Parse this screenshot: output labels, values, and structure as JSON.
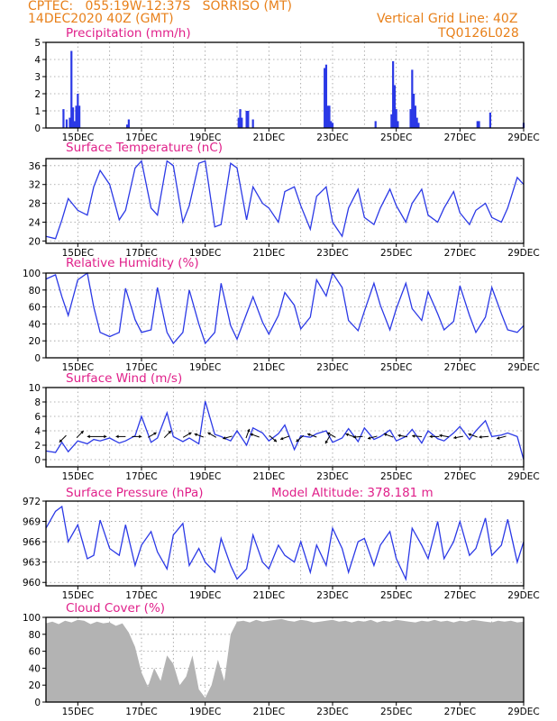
{
  "header": {
    "line1_left": "CPTEC:   055:19W-12:37S   SORRISO (MT)",
    "line2_left": "14DEC2020 40Z (GMT)",
    "line1_right": "Vertical Grid Line: 40Z",
    "line2_right": "TQ0126L028"
  },
  "colors": {
    "series": "#2b39e6",
    "cloud": "#b3b3b3",
    "title": "#e0208a",
    "header": "#e8801a"
  },
  "chart_data": [
    {
      "type": "bar",
      "title": "Precipitation (mm/h)",
      "x_ticks": [
        "15DEC",
        "17DEC",
        "19DEC",
        "21DEC",
        "23DEC",
        "25DEC",
        "27DEC",
        "29DEC"
      ],
      "xlim_days": [
        14,
        29
      ],
      "ylim": [
        0,
        5
      ],
      "y_ticks": [
        0,
        1,
        2,
        3,
        4,
        5
      ],
      "grid": true,
      "x": [
        14.55,
        14.65,
        14.75,
        14.8,
        14.85,
        14.9,
        14.95,
        15.0,
        15.05,
        16.55,
        16.6,
        20.05,
        20.1,
        20.15,
        20.3,
        20.35,
        20.5,
        22.75,
        22.8,
        22.85,
        22.9,
        22.95,
        23.0,
        24.35,
        24.85,
        24.9,
        24.95,
        25.0,
        25.05,
        25.45,
        25.5,
        25.55,
        25.6,
        25.65,
        25.7,
        27.55,
        27.6,
        27.95,
        29.0
      ],
      "values": [
        1.1,
        0.5,
        0.6,
        4.5,
        1.2,
        0.4,
        1.3,
        2.0,
        1.3,
        0.2,
        0.5,
        0.6,
        1.1,
        0.6,
        1.0,
        1.0,
        0.5,
        3.5,
        3.7,
        1.3,
        1.3,
        0.4,
        0.3,
        0.4,
        0.8,
        3.9,
        2.5,
        1.1,
        0.4,
        1.1,
        3.4,
        2.0,
        1.3,
        0.6,
        0.3,
        0.4,
        0.4,
        0.9,
        0.3
      ]
    },
    {
      "type": "line",
      "title": "Surface Temperature (nC)",
      "x_ticks": [
        "15DEC",
        "17DEC",
        "19DEC",
        "21DEC",
        "23DEC",
        "25DEC",
        "27DEC",
        "29DEC"
      ],
      "xlim_days": [
        14,
        29
      ],
      "ylim": [
        19.5,
        37.5
      ],
      "y_ticks": [
        20,
        24,
        28,
        32,
        36
      ],
      "grid": true,
      "x": [
        14.0,
        14.3,
        14.5,
        14.7,
        15.0,
        15.3,
        15.5,
        15.7,
        16.0,
        16.3,
        16.5,
        16.8,
        17.0,
        17.3,
        17.5,
        17.8,
        18.0,
        18.3,
        18.5,
        18.8,
        19.0,
        19.3,
        19.5,
        19.8,
        20.0,
        20.3,
        20.5,
        20.8,
        21.0,
        21.3,
        21.5,
        21.8,
        22.0,
        22.3,
        22.5,
        22.8,
        23.0,
        23.3,
        23.5,
        23.8,
        24.0,
        24.3,
        24.5,
        24.8,
        25.0,
        25.3,
        25.5,
        25.8,
        26.0,
        26.3,
        26.5,
        26.8,
        27.0,
        27.3,
        27.5,
        27.8,
        28.0,
        28.3,
        28.5,
        28.8,
        29.0
      ],
      "values": [
        21.0,
        20.5,
        24.5,
        29.0,
        26.5,
        25.5,
        31.5,
        35.0,
        32.0,
        24.5,
        26.5,
        35.5,
        37.0,
        27.0,
        25.5,
        37.0,
        36.0,
        24.0,
        27.5,
        36.5,
        37.0,
        23.0,
        23.5,
        36.5,
        35.5,
        24.5,
        31.5,
        28.0,
        27.0,
        24.0,
        30.5,
        31.5,
        27.5,
        22.5,
        29.5,
        31.5,
        24.0,
        21.0,
        27.0,
        31.0,
        25.0,
        23.5,
        27.0,
        31.0,
        27.5,
        24.0,
        28.0,
        31.0,
        25.5,
        24.0,
        27.0,
        30.5,
        26.0,
        23.5,
        26.5,
        28.0,
        25.0,
        24.0,
        27.0,
        33.5,
        32.0
      ]
    },
    {
      "type": "line",
      "title": "Relative Humidity (%)",
      "x_ticks": [
        "15DEC",
        "17DEC",
        "19DEC",
        "21DEC",
        "23DEC",
        "25DEC",
        "27DEC",
        "29DEC"
      ],
      "xlim_days": [
        14,
        29
      ],
      "ylim": [
        0,
        100
      ],
      "y_ticks": [
        0,
        20,
        40,
        60,
        80,
        100
      ],
      "grid": true,
      "x": [
        14.0,
        14.3,
        14.5,
        14.7,
        15.0,
        15.3,
        15.5,
        15.7,
        16.0,
        16.3,
        16.5,
        16.8,
        17.0,
        17.3,
        17.5,
        17.8,
        18.0,
        18.3,
        18.5,
        18.8,
        19.0,
        19.3,
        19.5,
        19.8,
        20.0,
        20.3,
        20.5,
        20.8,
        21.0,
        21.3,
        21.5,
        21.8,
        22.0,
        22.3,
        22.5,
        22.8,
        23.0,
        23.3,
        23.5,
        23.8,
        24.0,
        24.3,
        24.5,
        24.8,
        25.0,
        25.3,
        25.5,
        25.8,
        26.0,
        26.3,
        26.5,
        26.8,
        27.0,
        27.3,
        27.5,
        27.8,
        28.0,
        28.3,
        28.5,
        28.8,
        29.0
      ],
      "values": [
        93.0,
        98.0,
        72.0,
        50.0,
        92.0,
        100.0,
        60.0,
        30.0,
        25.0,
        30.0,
        82.0,
        45.0,
        30.0,
        33.0,
        83.0,
        30.0,
        17.0,
        30.0,
        80.0,
        40.0,
        17.0,
        30.0,
        88.0,
        38.0,
        22.0,
        52.0,
        72.0,
        42.0,
        28.0,
        50.0,
        77.0,
        62.0,
        34.0,
        48.0,
        92.0,
        73.0,
        100.0,
        83.0,
        44.0,
        32.0,
        55.0,
        88.0,
        62.0,
        33.0,
        58.0,
        88.0,
        58.0,
        44.0,
        78.0,
        52.0,
        33.0,
        43.0,
        85.0,
        50.0,
        30.0,
        48.0,
        83.0,
        52.0,
        33.0,
        30.0,
        38.0
      ]
    },
    {
      "type": "line",
      "title": "Surface Wind (m/s)",
      "x_ticks": [
        "15DEC",
        "17DEC",
        "19DEC",
        "21DEC",
        "23DEC",
        "25DEC",
        "27DEC",
        "29DEC"
      ],
      "xlim_days": [
        14,
        29
      ],
      "ylim": [
        -1,
        10
      ],
      "y_ticks": [
        0,
        2,
        4,
        6,
        8,
        10
      ],
      "grid": true,
      "x": [
        14.0,
        14.3,
        14.5,
        14.7,
        15.0,
        15.3,
        15.5,
        15.7,
        16.0,
        16.3,
        16.5,
        16.8,
        17.0,
        17.3,
        17.5,
        17.8,
        18.0,
        18.3,
        18.5,
        18.8,
        19.0,
        19.3,
        19.5,
        19.8,
        20.0,
        20.3,
        20.5,
        20.8,
        21.0,
        21.3,
        21.5,
        21.8,
        22.0,
        22.3,
        22.5,
        22.8,
        23.0,
        23.3,
        23.5,
        23.8,
        24.0,
        24.3,
        24.5,
        24.8,
        25.0,
        25.3,
        25.5,
        25.8,
        26.0,
        26.3,
        26.5,
        26.8,
        27.0,
        27.3,
        27.5,
        27.8,
        28.0,
        28.3,
        28.5,
        28.8,
        29.0
      ],
      "values": [
        1.2,
        1.0,
        2.4,
        1.1,
        2.6,
        2.2,
        2.8,
        2.6,
        3.0,
        2.3,
        2.6,
        3.3,
        6.0,
        2.4,
        3.0,
        6.5,
        3.2,
        2.5,
        3.0,
        2.2,
        8.1,
        3.5,
        3.2,
        2.6,
        4.0,
        2.0,
        4.4,
        3.7,
        2.6,
        3.6,
        4.8,
        1.4,
        3.3,
        3.1,
        3.6,
        4.0,
        2.4,
        3.0,
        4.3,
        2.5,
        4.4,
        2.8,
        3.2,
        4.1,
        2.6,
        3.2,
        4.2,
        2.3,
        4.0,
        2.9,
        2.6,
        3.7,
        4.6,
        2.8,
        4.0,
        5.4,
        3.2,
        3.4,
        3.7,
        3.2,
        0.0
      ],
      "arrows_x": [
        14.6,
        15.0,
        15.55,
        15.65,
        16.45,
        16.75,
        17.25,
        17.75,
        18.35,
        18.9,
        19.3,
        19.8,
        20.3,
        20.65,
        21.05,
        21.6,
        22.05,
        22.45,
        22.9,
        23.05,
        23.65,
        23.9,
        24.35,
        24.85,
        25.3,
        25.75,
        26.3,
        26.6,
        27.05,
        27.5,
        27.85,
        28.4
      ],
      "arrows_dir_deg": [
        135,
        315,
        180,
        0,
        180,
        0,
        330,
        315,
        330,
        200,
        210,
        165,
        290,
        200,
        40,
        160,
        140,
        200,
        120,
        210,
        200,
        175,
        165,
        200,
        190,
        185,
        180,
        190,
        170,
        200,
        175,
        165
      ]
    },
    {
      "type": "line",
      "title": "Surface Pressure (hPa)",
      "annotation": "Model Altitude: 378.181 m",
      "x_ticks": [
        "15DEC",
        "17DEC",
        "19DEC",
        "21DEC",
        "23DEC",
        "25DEC",
        "27DEC",
        "29DEC"
      ],
      "xlim_days": [
        14,
        29
      ],
      "ylim": [
        959.5,
        972.0
      ],
      "y_ticks": [
        960,
        963,
        966,
        969,
        972
      ],
      "grid": true,
      "x": [
        14.0,
        14.3,
        14.5,
        14.7,
        15.0,
        15.3,
        15.5,
        15.7,
        16.0,
        16.3,
        16.5,
        16.8,
        17.0,
        17.3,
        17.5,
        17.8,
        18.0,
        18.3,
        18.5,
        18.8,
        19.0,
        19.3,
        19.5,
        19.8,
        20.0,
        20.3,
        20.5,
        20.8,
        21.0,
        21.3,
        21.5,
        21.8,
        22.0,
        22.3,
        22.5,
        22.8,
        23.0,
        23.3,
        23.5,
        23.8,
        24.0,
        24.3,
        24.5,
        24.8,
        25.0,
        25.3,
        25.5,
        25.8,
        26.0,
        26.3,
        26.5,
        26.8,
        27.0,
        27.3,
        27.5,
        27.8,
        28.0,
        28.3,
        28.5,
        28.8,
        29.0
      ],
      "values": [
        968.0,
        970.5,
        971.2,
        966.0,
        968.5,
        963.5,
        964.0,
        969.2,
        965.0,
        964.0,
        968.5,
        962.5,
        965.5,
        967.5,
        964.5,
        962.0,
        967.0,
        968.7,
        962.5,
        965.0,
        963.0,
        961.5,
        966.5,
        962.5,
        960.5,
        962.0,
        967.0,
        963.0,
        962.0,
        965.5,
        964.0,
        963.0,
        966.0,
        961.5,
        965.5,
        962.5,
        968.0,
        965.0,
        961.5,
        966.0,
        966.5,
        962.5,
        965.5,
        967.5,
        963.5,
        960.5,
        968.0,
        965.5,
        963.5,
        969.0,
        963.5,
        966.0,
        969.0,
        964.0,
        965.0,
        969.5,
        964.0,
        965.5,
        969.3,
        963.0,
        966.0
      ]
    },
    {
      "type": "area",
      "title": "Cloud Cover (%)",
      "x_ticks": [
        "15DEC",
        "17DEC",
        "19DEC",
        "21DEC",
        "23DEC",
        "25DEC",
        "27DEC",
        "29DEC"
      ],
      "xlim_days": [
        14,
        29
      ],
      "ylim": [
        0,
        100
      ],
      "y_ticks": [
        0,
        20,
        40,
        60,
        80,
        100
      ],
      "grid": true,
      "x": [
        14.0,
        14.2,
        14.4,
        14.6,
        14.8,
        15.0,
        15.2,
        15.4,
        15.6,
        15.8,
        16.0,
        16.2,
        16.4,
        16.6,
        16.8,
        17.0,
        17.2,
        17.4,
        17.6,
        17.8,
        18.0,
        18.2,
        18.4,
        18.6,
        18.8,
        19.0,
        19.2,
        19.4,
        19.6,
        19.8,
        20.0,
        20.2,
        20.4,
        20.6,
        20.8,
        21.0,
        21.2,
        21.4,
        21.6,
        21.8,
        22.0,
        22.2,
        22.4,
        22.6,
        22.8,
        23.0,
        23.2,
        23.4,
        23.6,
        23.8,
        24.0,
        24.2,
        24.4,
        24.6,
        24.8,
        25.0,
        25.2,
        25.4,
        25.6,
        25.8,
        26.0,
        26.2,
        26.4,
        26.6,
        26.8,
        27.0,
        27.2,
        27.4,
        27.6,
        27.8,
        28.0,
        28.2,
        28.4,
        28.6,
        28.8,
        29.0
      ],
      "values": [
        93,
        95,
        92,
        96,
        94,
        97,
        96,
        92,
        95,
        93,
        94,
        90,
        93,
        82,
        65,
        35,
        18,
        40,
        25,
        55,
        45,
        20,
        30,
        55,
        15,
        5,
        20,
        50,
        25,
        80,
        95,
        96,
        94,
        97,
        95,
        96,
        97,
        98,
        96,
        95,
        97,
        96,
        94,
        95,
        96,
        97,
        95,
        96,
        94,
        96,
        95,
        97,
        94,
        96,
        95,
        97,
        96,
        95,
        94,
        96,
        95,
        97,
        95,
        96,
        94,
        96,
        95,
        97,
        96,
        95,
        94,
        96,
        95,
        96,
        94,
        95
      ]
    }
  ]
}
